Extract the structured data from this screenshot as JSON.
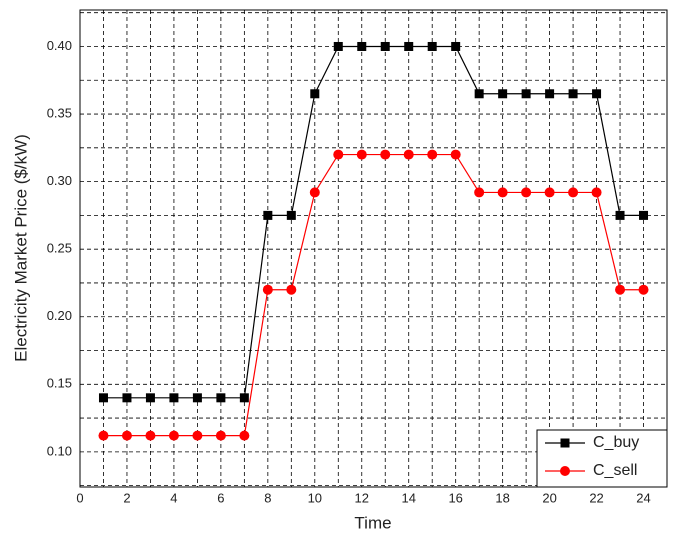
{
  "chart_data": {
    "type": "line",
    "x_label": "Time",
    "y_label": "Electricity Market Price ($/kW)",
    "x": [
      1,
      2,
      3,
      4,
      5,
      6,
      7,
      8,
      9,
      10,
      11,
      12,
      13,
      14,
      15,
      16,
      17,
      18,
      19,
      20,
      21,
      22,
      23,
      24
    ],
    "series": [
      {
        "name": "C_buy",
        "color": "#000000",
        "marker": "square",
        "values": [
          0.14,
          0.14,
          0.14,
          0.14,
          0.14,
          0.14,
          0.14,
          0.275,
          0.275,
          0.365,
          0.4,
          0.4,
          0.4,
          0.4,
          0.4,
          0.4,
          0.365,
          0.365,
          0.365,
          0.365,
          0.365,
          0.365,
          0.275,
          0.275
        ]
      },
      {
        "name": "C_sell",
        "color": "#ff0000",
        "marker": "circle",
        "values": [
          0.112,
          0.112,
          0.112,
          0.112,
          0.112,
          0.112,
          0.112,
          0.22,
          0.22,
          0.292,
          0.32,
          0.32,
          0.32,
          0.32,
          0.32,
          0.32,
          0.292,
          0.292,
          0.292,
          0.292,
          0.292,
          0.292,
          0.22,
          0.22
        ]
      }
    ],
    "xlim": [
      0,
      25
    ],
    "xticks": [
      0,
      2,
      4,
      6,
      8,
      10,
      12,
      14,
      16,
      18,
      20,
      22,
      24
    ],
    "x_minor_ticks": [
      1,
      3,
      5,
      7,
      9,
      11,
      13,
      15,
      17,
      19,
      21,
      23,
      25
    ],
    "ylim": [
      0.074,
      0.427
    ],
    "yticks": [
      {
        "value": 0.1,
        "label": "0.10"
      },
      0.15,
      {
        "value": 0.2,
        "label": "0.20"
      },
      0.25,
      {
        "value": 0.3,
        "label": "0.30"
      },
      0.35,
      {
        "value": 0.4,
        "label": "0.40"
      }
    ],
    "y_minor_ticks": [
      0.075,
      0.125,
      0.175,
      0.225,
      0.275,
      0.325,
      0.375,
      0.425
    ],
    "grid": true,
    "legend": "lower right"
  }
}
